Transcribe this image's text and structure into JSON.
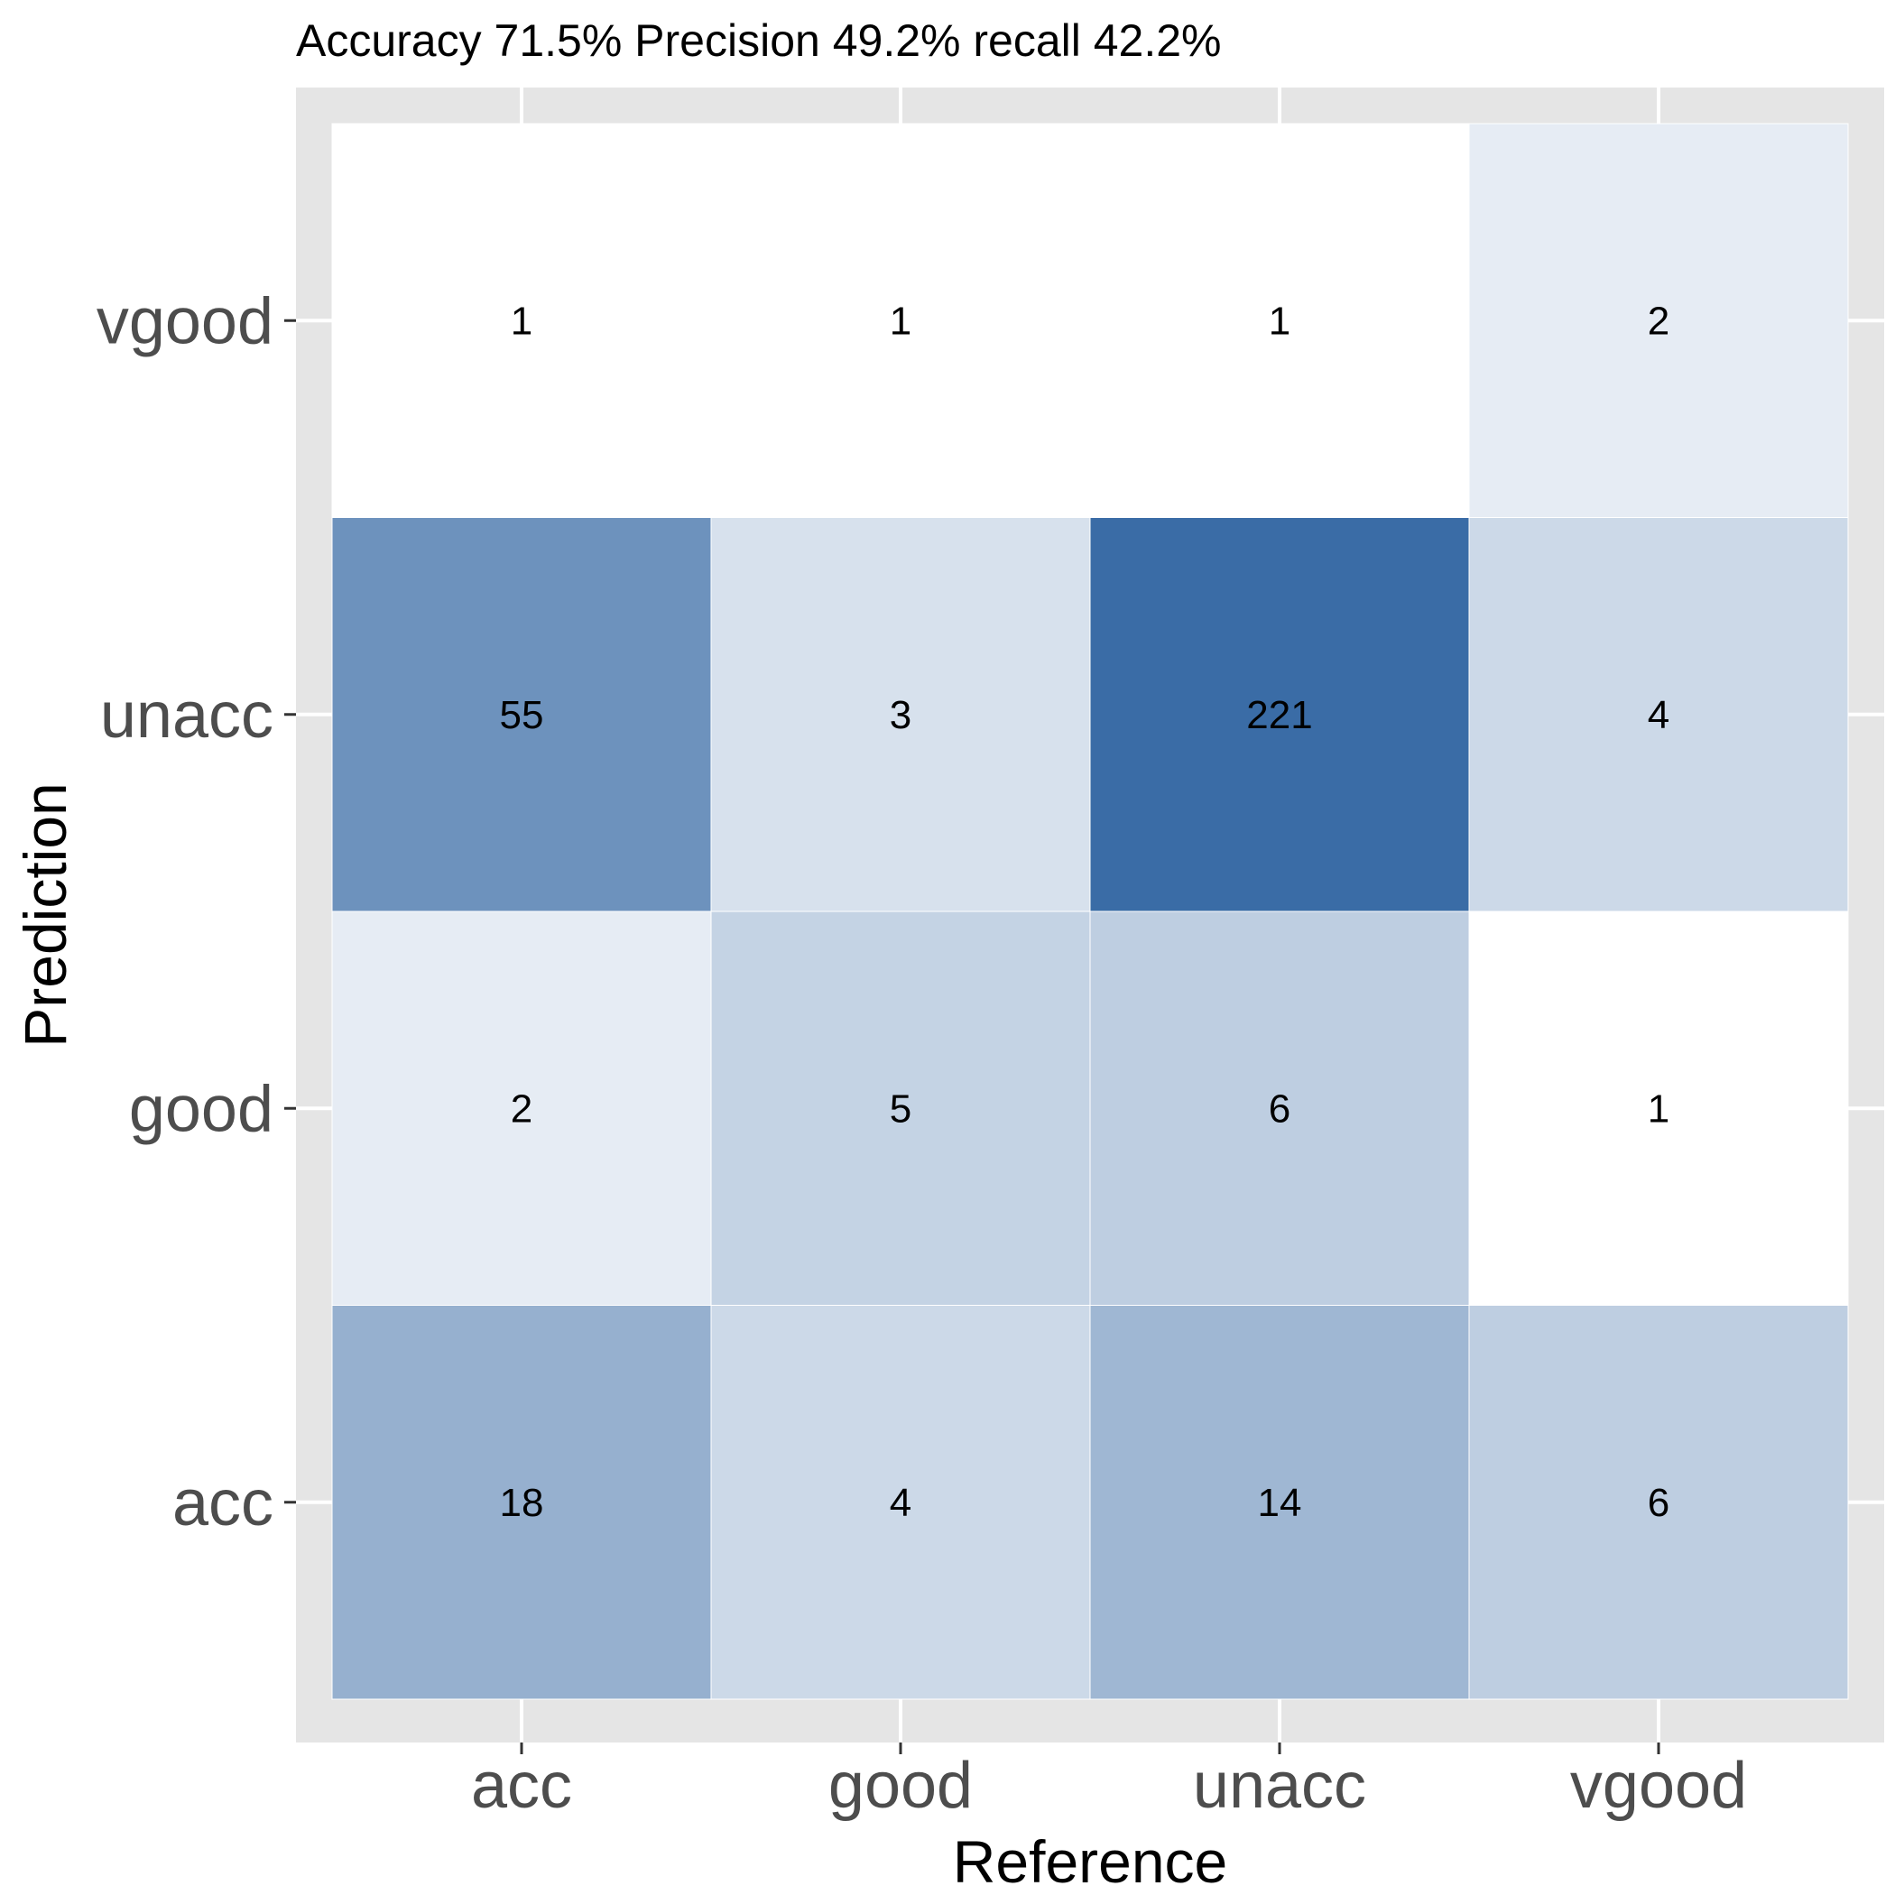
{
  "chart_data": {
    "type": "heatmap",
    "title": "Accuracy 71.5% Precision 49.2% recall 42.2%",
    "xlabel": "Reference",
    "ylabel": "Prediction",
    "x_categories": [
      "acc",
      "good",
      "unacc",
      "vgood"
    ],
    "y_categories": [
      "acc",
      "good",
      "unacc",
      "vgood"
    ],
    "cells": [
      {
        "reference": "acc",
        "prediction": "vgood",
        "value": 1
      },
      {
        "reference": "good",
        "prediction": "vgood",
        "value": 1
      },
      {
        "reference": "unacc",
        "prediction": "vgood",
        "value": 1
      },
      {
        "reference": "vgood",
        "prediction": "vgood",
        "value": 2
      },
      {
        "reference": "acc",
        "prediction": "unacc",
        "value": 55
      },
      {
        "reference": "good",
        "prediction": "unacc",
        "value": 3
      },
      {
        "reference": "unacc",
        "prediction": "unacc",
        "value": 221
      },
      {
        "reference": "vgood",
        "prediction": "unacc",
        "value": 4
      },
      {
        "reference": "acc",
        "prediction": "good",
        "value": 2
      },
      {
        "reference": "good",
        "prediction": "good",
        "value": 5
      },
      {
        "reference": "unacc",
        "prediction": "good",
        "value": 6
      },
      {
        "reference": "vgood",
        "prediction": "good",
        "value": 1
      },
      {
        "reference": "acc",
        "prediction": "acc",
        "value": 18
      },
      {
        "reference": "good",
        "prediction": "acc",
        "value": 4
      },
      {
        "reference": "unacc",
        "prediction": "acc",
        "value": 14
      },
      {
        "reference": "vgood",
        "prediction": "acc",
        "value": 6
      }
    ],
    "color_low": "#ffffff",
    "color_high": "#3a6ca6",
    "panel_background": "#e5e5e5",
    "grid": true
  }
}
